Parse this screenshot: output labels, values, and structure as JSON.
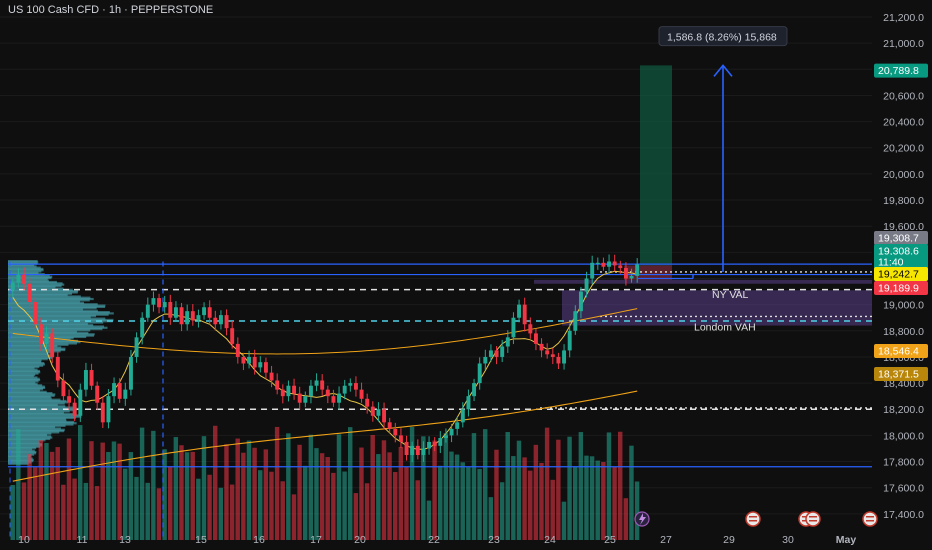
{
  "header": {
    "title": "US 100 Cash CFD · 1h · PEPPERSTONE"
  },
  "colors": {
    "background": "#0f0f0f",
    "bull": "#22ab94",
    "bear": "#f23645",
    "blue_line": "#2962ff",
    "orange_line": "#f0a318",
    "yellow_line": "#e8c547",
    "profile": "#4fb3bf",
    "purple_zone": "#5b3f8c"
  },
  "chart_data": {
    "type": "candlestick",
    "symbol": "US 100 Cash CFD",
    "timeframe": "1h",
    "broker": "PEPPERSTONE",
    "y_axis": {
      "ticks": [
        21200,
        21000,
        20800,
        20600,
        20400,
        20200,
        20000,
        19800,
        19600,
        19400,
        19200,
        19000,
        18800,
        18600,
        18400,
        18200,
        18000,
        17800,
        17600,
        17400
      ],
      "tick_labels": [
        "21,200.0",
        "21,000.0",
        "20,800.0",
        "20,600.0",
        "20,400.0",
        "20,200.0",
        "20,000.0",
        "19,800.0",
        "19,600.0",
        "19,400.0",
        "19,200.0",
        "19,000.0",
        "18,800.0",
        "18,600.0",
        "18,400.0",
        "18,200.0",
        "18,000.0",
        "17,800.0",
        "17,600.0",
        "17,400.0"
      ],
      "ylim": [
        17200,
        21330
      ]
    },
    "x_axis": {
      "tick_labels": [
        "10",
        "11",
        "13",
        "15",
        "16",
        "17",
        "20",
        "22",
        "23",
        "24",
        "25",
        "27",
        "29",
        "30",
        "May"
      ],
      "bold_labels": [
        "May"
      ]
    },
    "price_tags": [
      {
        "label": "20,789.8",
        "value": 20789.8,
        "color": "#089981"
      },
      {
        "label": "19,308.7",
        "value": 19308.7,
        "color": "#787b86"
      },
      {
        "label": "19,308.6",
        "value": 19308.6,
        "color": "#089981"
      },
      {
        "label": "11:40",
        "value": 19265,
        "color": "#089981"
      },
      {
        "label": "19,242.7",
        "value": 19242.7,
        "color": "#f7e600"
      },
      {
        "label": "19,189.9",
        "value": 19189.9,
        "color": "#f23645"
      },
      {
        "label": "18,546.4",
        "value": 18546.4,
        "color": "#f0a318"
      },
      {
        "label": "18,371.5",
        "value": 18371.5,
        "color": "#b8860b"
      }
    ],
    "annotations": [
      {
        "text": "1,586.8 (8.26%) 15,868"
      },
      {
        "text": "NY VAL",
        "value": 19075
      },
      {
        "text": "Londom VAH",
        "value": 18825
      }
    ],
    "levels": {
      "blue_top": 19310,
      "blue_mid": 19230,
      "blue_bottom": 17760,
      "dashed_white_upper": 19115,
      "dashed_cyan": 18875,
      "dashed_white_lower": 18200,
      "dotted_white_1": 19250,
      "dotted_white_2": 18910,
      "dotted_white_3": 18210
    },
    "target_arrow": {
      "from": 19250,
      "to": 20830
    },
    "close_series": [
      19170,
      19230,
      19160,
      19020,
      18850,
      18700,
      18780,
      18600,
      18420,
      18300,
      18250,
      18150,
      18350,
      18500,
      18380,
      18250,
      18100,
      18300,
      18400,
      18280,
      18350,
      18600,
      18750,
      18900,
      19000,
      19050,
      18980,
      19020,
      18900,
      18980,
      18850,
      18950,
      18880,
      18920,
      18980,
      18900,
      18850,
      18920,
      18820,
      18700,
      18600,
      18550,
      18600,
      18520,
      18560,
      18480,
      18420,
      18350,
      18300,
      18380,
      18320,
      18250,
      18300,
      18380,
      18420,
      18350,
      18300,
      18250,
      18320,
      18380,
      18400,
      18350,
      18280,
      18220,
      18150,
      18200,
      18100,
      18050,
      18000,
      17950,
      17850,
      17920,
      17850,
      17900,
      17950,
      17920,
      17980,
      18000,
      18050,
      18100,
      18200,
      18300,
      18400,
      18550,
      18600,
      18650,
      18600,
      18680,
      18750,
      18900,
      19000,
      18850,
      18780,
      18700,
      18650,
      18620,
      18600,
      18550,
      18650,
      18800,
      18950,
      19100,
      19200,
      19320,
      19320,
      19290,
      19330,
      19300,
      19280,
      19200,
      19220,
      19308
    ]
  }
}
